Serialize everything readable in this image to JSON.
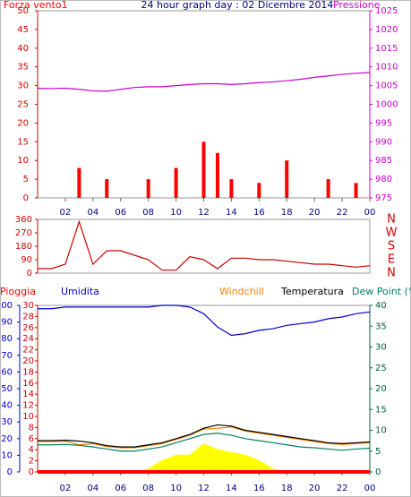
{
  "chart_data": [
    {
      "type": "line",
      "title": "24 hour graph day : 02 Dicembre 2014",
      "x": [
        0,
        1,
        2,
        3,
        4,
        5,
        6,
        7,
        8,
        9,
        10,
        11,
        12,
        13,
        14,
        15,
        16,
        17,
        18,
        19,
        20,
        21,
        22,
        23,
        24
      ],
      "xlim": [
        0,
        24
      ],
      "xticks": [
        {
          "value": 2,
          "label": "02"
        },
        {
          "value": 4,
          "label": "04"
        },
        {
          "value": 6,
          "label": "06"
        },
        {
          "value": 8,
          "label": "08"
        },
        10,
        12,
        14,
        16,
        18,
        20,
        22,
        {
          "value": 24,
          "label": "00"
        }
      ],
      "ylim": [
        0,
        50
      ],
      "yticks": [
        0,
        5,
        10,
        15,
        20,
        25,
        30,
        35,
        40,
        45,
        50
      ],
      "y2lim": [
        975,
        1025
      ],
      "y2ticks": [
        975,
        980,
        985,
        990,
        995,
        1000,
        1005,
        1010,
        1015,
        1020,
        1025
      ],
      "series": [
        {
          "name": "Forza vento1",
          "type": "bar",
          "color": "#ff0000",
          "values": [
            0,
            0,
            0,
            8,
            0,
            5,
            0,
            0,
            5,
            0,
            8,
            0,
            15,
            12,
            5,
            0,
            4,
            0,
            10,
            0,
            0,
            5,
            0,
            4,
            0
          ]
        },
        {
          "name": "Pressione",
          "type": "line",
          "axis": "y2",
          "color": "#cc00cc",
          "values": [
            1004.3,
            1004.2,
            1004.3,
            1004,
            1003.6,
            1003.5,
            1004,
            1004.5,
            1004.7,
            1004.7,
            1005,
            1005.3,
            1005.5,
            1005.5,
            1005.3,
            1005.5,
            1005.8,
            1006,
            1006.3,
            1006.7,
            1007.2,
            1007.6,
            1008,
            1008.3,
            1008.5
          ]
        }
      ]
    },
    {
      "type": "line",
      "x": [
        0,
        1,
        2,
        3,
        4,
        5,
        6,
        7,
        8,
        9,
        10,
        11,
        12,
        13,
        14,
        15,
        16,
        17,
        18,
        19,
        20,
        21,
        22,
        23,
        24
      ],
      "xlim": [
        0,
        24
      ],
      "ylim": [
        0,
        360
      ],
      "yticks": [
        0,
        90,
        180,
        270,
        360
      ],
      "y2lim": [
        0,
        360
      ],
      "y2ticks": [
        {
          "value": 360,
          "label": "N"
        },
        {
          "value": 270,
          "label": "W"
        },
        {
          "value": 180,
          "label": "S"
        },
        {
          "value": 90,
          "label": "E"
        },
        {
          "value": 0,
          "label": "N"
        }
      ],
      "series": [
        {
          "type": "line",
          "color": "#cc0000",
          "values": [
            30,
            30,
            60,
            345,
            60,
            150,
            150,
            120,
            90,
            20,
            20,
            110,
            90,
            30,
            100,
            100,
            90,
            90,
            80,
            70,
            60,
            60,
            50,
            40,
            50
          ]
        }
      ]
    },
    {
      "type": "line",
      "x": [
        0,
        1,
        2,
        3,
        4,
        5,
        6,
        7,
        8,
        9,
        10,
        11,
        12,
        13,
        14,
        15,
        16,
        17,
        18,
        19,
        20,
        21,
        22,
        23,
        24
      ],
      "xlim": [
        0,
        24
      ],
      "xticks": [
        {
          "value": 2,
          "label": "02"
        },
        {
          "value": 4,
          "label": "04"
        },
        {
          "value": 6,
          "label": "06"
        },
        {
          "value": 8,
          "label": "08"
        },
        10,
        12,
        14,
        16,
        18,
        20,
        22,
        {
          "value": 24,
          "label": "00"
        }
      ],
      "ylim": [
        0,
        100
      ],
      "yticks": [
        0,
        10,
        20,
        30,
        40,
        50,
        60,
        70,
        80,
        90,
        100
      ],
      "y3lim": [
        0,
        30
      ],
      "y3ticks": [
        0,
        2,
        4,
        6,
        8,
        10,
        12,
        14,
        16,
        18,
        20,
        22,
        24,
        26,
        28,
        30
      ],
      "y2lim": [
        0,
        40
      ],
      "y2ticks": [
        0,
        5,
        10,
        15,
        20,
        25,
        30,
        35,
        40
      ],
      "series": [
        {
          "name": "Pioggia",
          "type": "line",
          "axis": "y3",
          "color": "#ff0000",
          "values": [
            0,
            0,
            0,
            0,
            0,
            0,
            0,
            0,
            0,
            0,
            0,
            0,
            0,
            0,
            0,
            0,
            0,
            0,
            0,
            0,
            0,
            0,
            0,
            0,
            0
          ]
        },
        {
          "name": "Umidita",
          "type": "line",
          "color": "#0000cc",
          "values": [
            98,
            98,
            99,
            99,
            99,
            99,
            99,
            99,
            99,
            100,
            100,
            99,
            95,
            87,
            82,
            83,
            85,
            86,
            88,
            89,
            90,
            92,
            93,
            95,
            96
          ]
        },
        {
          "name": "Windchill",
          "type": "line",
          "axis": "y2",
          "color": "#ff8000",
          "values": [
            7.3,
            7.3,
            7.4,
            6.5,
            6.8,
            6.1,
            5.8,
            5.8,
            6.3,
            6.8,
            7.8,
            8.8,
            10.3,
            10.5,
            10.8,
            9.8,
            9.3,
            8.8,
            8.3,
            7.8,
            7.3,
            6.8,
            6.6,
            6.8,
            7
          ]
        },
        {
          "name": "Temperatura",
          "type": "line",
          "axis": "y2",
          "color": "#000000",
          "values": [
            7.5,
            7.5,
            7.6,
            7.4,
            7,
            6.3,
            6,
            6,
            6.5,
            7,
            8,
            9,
            10.5,
            11.3,
            11,
            10,
            9.5,
            9,
            8.5,
            8,
            7.5,
            7,
            6.8,
            7,
            7.2
          ]
        },
        {
          "name": "Dew Point (°C",
          "type": "line",
          "axis": "y2",
          "color": "#008060",
          "values": [
            6.5,
            6.5,
            6.6,
            6.4,
            6,
            5.5,
            5,
            5,
            5.5,
            6,
            7,
            8,
            9,
            9.3,
            8.8,
            8,
            7.5,
            7,
            6.5,
            6,
            5.8,
            5.5,
            5.2,
            5.5,
            5.7
          ]
        },
        {
          "type": "area",
          "axis": "y3",
          "color": "#ffff00",
          "values": [
            0,
            0,
            0,
            0,
            0,
            0,
            0,
            0,
            0.5,
            2,
            3,
            3,
            5,
            4,
            3.5,
            3,
            2,
            0.5,
            0,
            0,
            0,
            0,
            0,
            0,
            0
          ]
        }
      ]
    }
  ]
}
